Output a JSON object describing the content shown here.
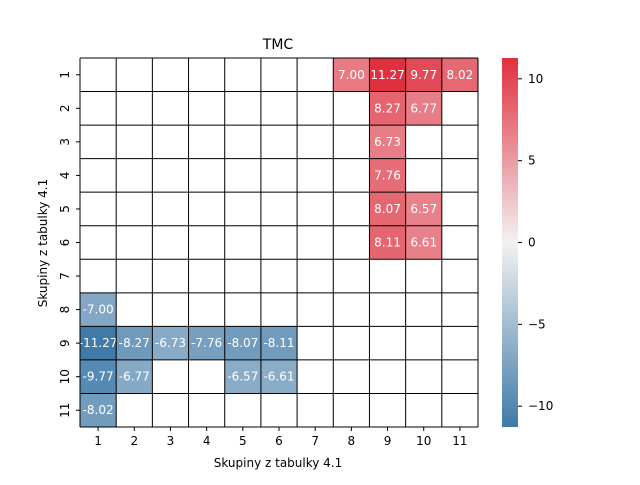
{
  "chart_data": {
    "type": "heatmap",
    "title": "TMC",
    "xlabel": "Skupiny z tabulky 4.1",
    "ylabel": "Skupiny z tabulky 4.1",
    "x_labels": [
      "1",
      "2",
      "3",
      "4",
      "5",
      "6",
      "7",
      "8",
      "9",
      "10",
      "11"
    ],
    "y_labels": [
      "1",
      "2",
      "3",
      "4",
      "5",
      "6",
      "7",
      "8",
      "9",
      "10",
      "11"
    ],
    "cells": [
      {
        "row": 1,
        "col": 8,
        "value": 7.0,
        "label": "7.00"
      },
      {
        "row": 1,
        "col": 9,
        "value": 11.27,
        "label": "11.27"
      },
      {
        "row": 1,
        "col": 10,
        "value": 9.77,
        "label": "9.77"
      },
      {
        "row": 1,
        "col": 11,
        "value": 8.02,
        "label": "8.02"
      },
      {
        "row": 2,
        "col": 9,
        "value": 8.27,
        "label": "8.27"
      },
      {
        "row": 2,
        "col": 10,
        "value": 6.77,
        "label": "6.77"
      },
      {
        "row": 3,
        "col": 9,
        "value": 6.73,
        "label": "6.73"
      },
      {
        "row": 4,
        "col": 9,
        "value": 7.76,
        "label": "7.76"
      },
      {
        "row": 5,
        "col": 9,
        "value": 8.07,
        "label": "8.07"
      },
      {
        "row": 5,
        "col": 10,
        "value": 6.57,
        "label": "6.57"
      },
      {
        "row": 6,
        "col": 9,
        "value": 8.11,
        "label": "8.11"
      },
      {
        "row": 6,
        "col": 10,
        "value": 6.61,
        "label": "6.61"
      },
      {
        "row": 8,
        "col": 1,
        "value": -7.0,
        "label": "-7.00"
      },
      {
        "row": 9,
        "col": 1,
        "value": -11.27,
        "label": "-11.27"
      },
      {
        "row": 9,
        "col": 2,
        "value": -8.27,
        "label": "-8.27"
      },
      {
        "row": 9,
        "col": 3,
        "value": -6.73,
        "label": "-6.73"
      },
      {
        "row": 9,
        "col": 4,
        "value": -7.76,
        "label": "-7.76"
      },
      {
        "row": 9,
        "col": 5,
        "value": -8.07,
        "label": "-8.07"
      },
      {
        "row": 9,
        "col": 6,
        "value": -8.11,
        "label": "-8.11"
      },
      {
        "row": 10,
        "col": 1,
        "value": -9.77,
        "label": "-9.77"
      },
      {
        "row": 10,
        "col": 2,
        "value": -6.77,
        "label": "-6.77"
      },
      {
        "row": 10,
        "col": 5,
        "value": -6.57,
        "label": "-6.57"
      },
      {
        "row": 10,
        "col": 6,
        "value": -6.61,
        "label": "-6.61"
      },
      {
        "row": 11,
        "col": 1,
        "value": -8.02,
        "label": "-8.02"
      }
    ],
    "colorbar": {
      "vmin": -11.27,
      "vmax": 11.27,
      "ticks": [
        -10,
        -5,
        0,
        5,
        10
      ],
      "tick_labels": [
        "−10",
        "−5",
        "0",
        "5",
        "10"
      ],
      "colors": {
        "negative": "#3f7aa8",
        "center": "#f2f2f2",
        "positive": "#e0303f"
      }
    },
    "grid": true
  }
}
